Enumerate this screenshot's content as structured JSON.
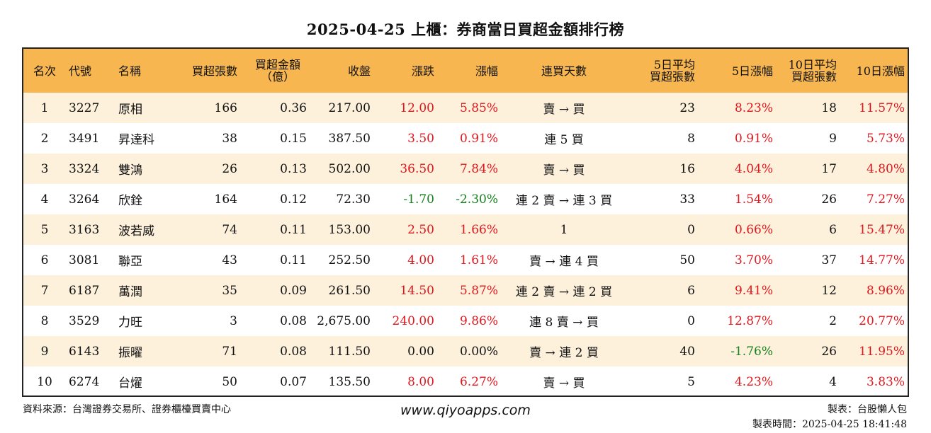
{
  "title": "2025-04-25 上櫃：券商當日買超金額排行榜",
  "headers": {
    "rank": "名次",
    "code": "代號",
    "name": "名稱",
    "buy_lots": "買超張數",
    "buy_amount_1": "買超金額",
    "buy_amount_2": "（億）",
    "close": "收盤",
    "change": "漲跌",
    "pct": "漲幅",
    "streak": "連買天數",
    "avg5_1": "5日平均",
    "avg5_2": "買超張數",
    "pct5": "5日漲幅",
    "avg10_1": "10日平均",
    "avg10_2": "買超張數",
    "pct10": "10日漲幅"
  },
  "rows": [
    {
      "rank": "1",
      "code": "3227",
      "name": "原相",
      "buy_lots": "166",
      "amount": "0.36",
      "close": "217.00",
      "change": "12.00",
      "pct": "5.85%",
      "streak": "賣 → 買",
      "avg5": "23",
      "pct5": "8.23%",
      "avg10": "18",
      "pct10": "11.57%",
      "change_dir": "up",
      "pct5_dir": "up",
      "pct10_dir": "up"
    },
    {
      "rank": "2",
      "code": "3491",
      "name": "昇達科",
      "buy_lots": "38",
      "amount": "0.15",
      "close": "387.50",
      "change": "3.50",
      "pct": "0.91%",
      "streak": "連 5 買",
      "avg5": "8",
      "pct5": "0.91%",
      "avg10": "9",
      "pct10": "5.73%",
      "change_dir": "up",
      "pct5_dir": "up",
      "pct10_dir": "up"
    },
    {
      "rank": "3",
      "code": "3324",
      "name": "雙鴻",
      "buy_lots": "26",
      "amount": "0.13",
      "close": "502.00",
      "change": "36.50",
      "pct": "7.84%",
      "streak": "賣 → 買",
      "avg5": "16",
      "pct5": "4.04%",
      "avg10": "17",
      "pct10": "4.80%",
      "change_dir": "up",
      "pct5_dir": "up",
      "pct10_dir": "up"
    },
    {
      "rank": "4",
      "code": "3264",
      "name": "欣銓",
      "buy_lots": "164",
      "amount": "0.12",
      "close": "72.30",
      "change": "-1.70",
      "pct": "-2.30%",
      "streak": "連 2 賣 → 連 3 買",
      "avg5": "33",
      "pct5": "1.54%",
      "avg10": "26",
      "pct10": "7.27%",
      "change_dir": "down",
      "pct5_dir": "up",
      "pct10_dir": "up"
    },
    {
      "rank": "5",
      "code": "3163",
      "name": "波若威",
      "buy_lots": "74",
      "amount": "0.11",
      "close": "153.00",
      "change": "2.50",
      "pct": "1.66%",
      "streak": "1",
      "avg5": "0",
      "pct5": "0.66%",
      "avg10": "6",
      "pct10": "15.47%",
      "change_dir": "up",
      "pct5_dir": "up",
      "pct10_dir": "up"
    },
    {
      "rank": "6",
      "code": "3081",
      "name": "聯亞",
      "buy_lots": "43",
      "amount": "0.11",
      "close": "252.50",
      "change": "4.00",
      "pct": "1.61%",
      "streak": "賣 → 連 4 買",
      "avg5": "50",
      "pct5": "3.70%",
      "avg10": "37",
      "pct10": "14.77%",
      "change_dir": "up",
      "pct5_dir": "up",
      "pct10_dir": "up"
    },
    {
      "rank": "7",
      "code": "6187",
      "name": "萬潤",
      "buy_lots": "35",
      "amount": "0.09",
      "close": "261.50",
      "change": "14.50",
      "pct": "5.87%",
      "streak": "連 2 賣 → 連 2 買",
      "avg5": "6",
      "pct5": "9.41%",
      "avg10": "12",
      "pct10": "8.96%",
      "change_dir": "up",
      "pct5_dir": "up",
      "pct10_dir": "up"
    },
    {
      "rank": "8",
      "code": "3529",
      "name": "力旺",
      "buy_lots": "3",
      "amount": "0.08",
      "close": "2,675.00",
      "change": "240.00",
      "pct": "9.86%",
      "streak": "連 8 賣 → 買",
      "avg5": "0",
      "pct5": "12.87%",
      "avg10": "2",
      "pct10": "20.77%",
      "change_dir": "up",
      "pct5_dir": "up",
      "pct10_dir": "up"
    },
    {
      "rank": "9",
      "code": "6143",
      "name": "振曜",
      "buy_lots": "71",
      "amount": "0.08",
      "close": "111.50",
      "change": "0.00",
      "pct": "0.00%",
      "streak": "賣 → 連 2 買",
      "avg5": "40",
      "pct5": "-1.76%",
      "avg10": "26",
      "pct10": "11.95%",
      "change_dir": "flat",
      "pct5_dir": "down",
      "pct10_dir": "up"
    },
    {
      "rank": "10",
      "code": "6274",
      "name": "台燿",
      "buy_lots": "50",
      "amount": "0.07",
      "close": "135.50",
      "change": "8.00",
      "pct": "6.27%",
      "streak": "賣 → 買",
      "avg5": "5",
      "pct5": "4.23%",
      "avg10": "4",
      "pct10": "3.83%",
      "change_dir": "up",
      "pct5_dir": "up",
      "pct10_dir": "up"
    }
  ],
  "footer": {
    "source": "資料來源：台灣證券交易所、證券櫃檯買賣中心",
    "website": "www.qiyoapps.com",
    "maker": "製表：台股懶人包",
    "made_time": "製表時間：2025-04-25 18:41:48"
  },
  "colors": {
    "header_bg": "#f7b64f",
    "row_alt_bg": "#fdf1dc",
    "up": "#e0161c",
    "down": "#15801d"
  }
}
